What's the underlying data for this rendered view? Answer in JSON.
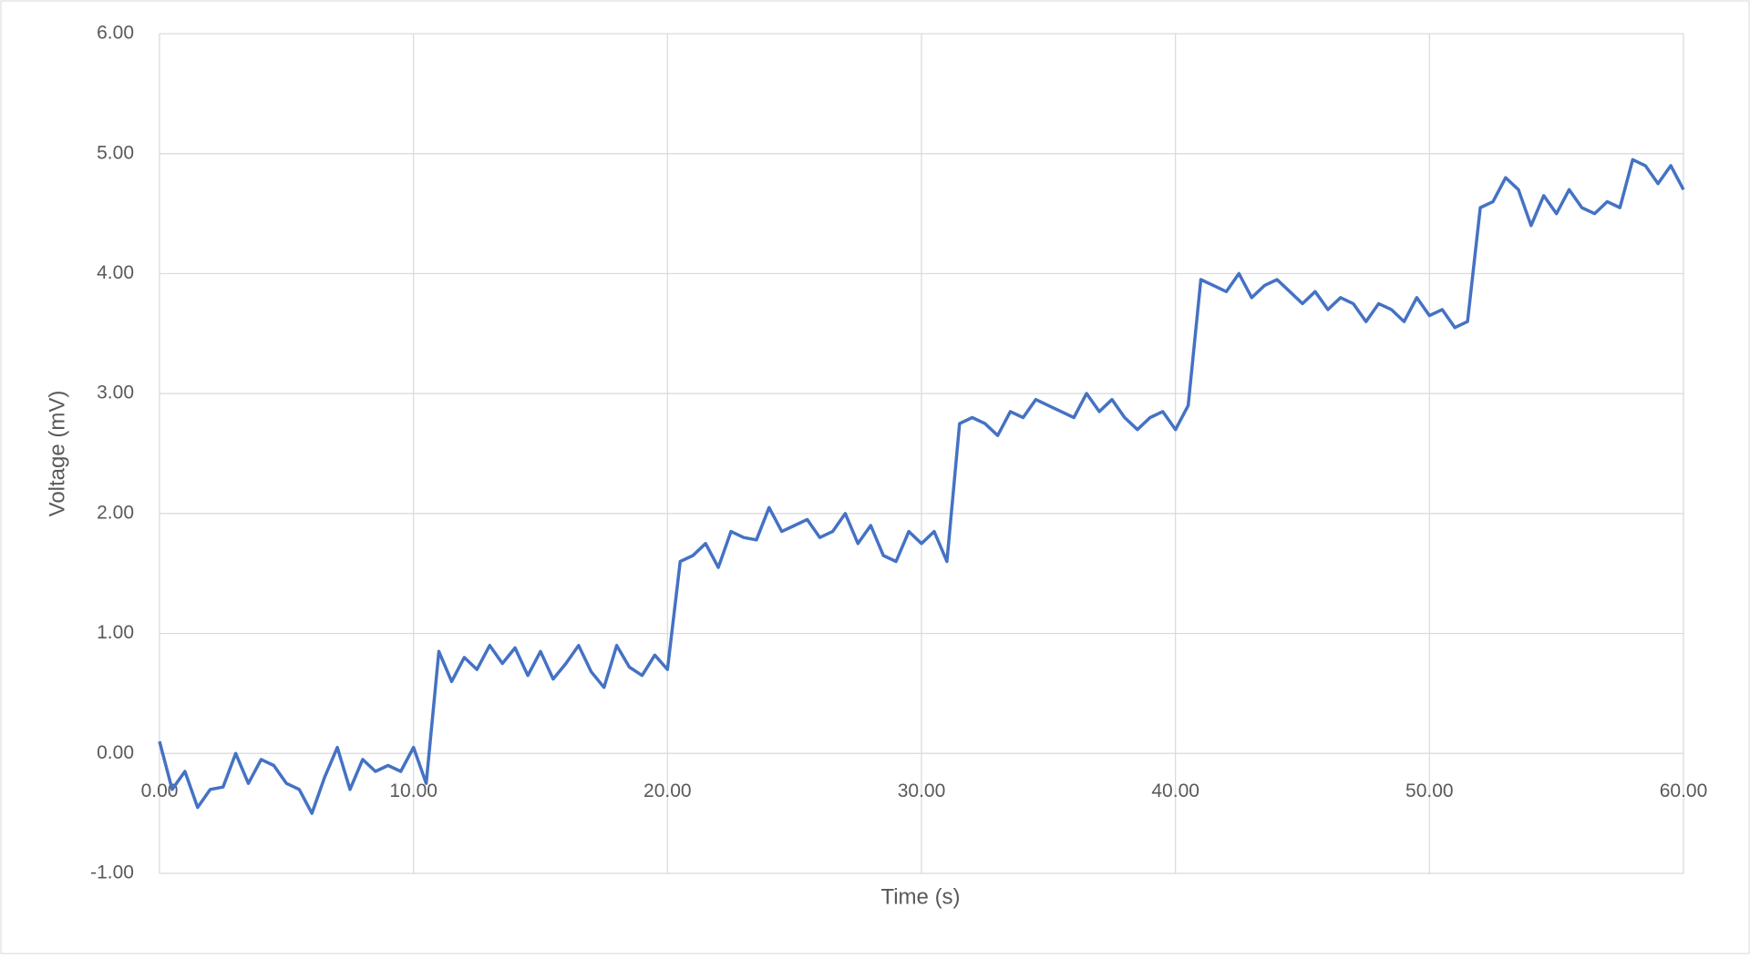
{
  "chart_data": {
    "type": "line",
    "xlabel": "Time (s)",
    "ylabel": "Voltage (mV)",
    "x": [
      0,
      0.5,
      1,
      1.5,
      2,
      2.5,
      3,
      3.5,
      4,
      4.5,
      5,
      5.5,
      6,
      6.5,
      7,
      7.5,
      8,
      8.5,
      9,
      9.5,
      10,
      10.5,
      11,
      11.5,
      12,
      12.5,
      13,
      13.5,
      14,
      14.5,
      15,
      15.5,
      16,
      16.5,
      17,
      17.5,
      18,
      18.5,
      19,
      19.5,
      20,
      20.5,
      21,
      21.5,
      22,
      22.5,
      23,
      23.5,
      24,
      24.5,
      25,
      25.5,
      26,
      26.5,
      27,
      27.5,
      28,
      28.5,
      29,
      29.5,
      30,
      30.5,
      31,
      31.5,
      32,
      32.5,
      33,
      33.5,
      34,
      34.5,
      35,
      35.5,
      36,
      36.5,
      37,
      37.5,
      38,
      38.5,
      39,
      39.5,
      40,
      40.5,
      41,
      41.5,
      42,
      42.5,
      43,
      43.5,
      44,
      44.5,
      45,
      45.5,
      46,
      46.5,
      47,
      47.5,
      48,
      48.5,
      49,
      49.5,
      50,
      50.5,
      51,
      51.5,
      52,
      52.5,
      53,
      53.5,
      54,
      54.5,
      55,
      55.5,
      56,
      56.5,
      57,
      57.5,
      58,
      58.5,
      59,
      59.5,
      60
    ],
    "series": [
      {
        "name": "Voltage",
        "color": "#4472c4",
        "values": [
          0.1,
          -0.3,
          -0.15,
          -0.45,
          -0.3,
          -0.28,
          0.0,
          -0.25,
          -0.05,
          -0.1,
          -0.25,
          -0.3,
          -0.5,
          -0.2,
          0.05,
          -0.3,
          -0.05,
          -0.15,
          -0.1,
          -0.15,
          0.05,
          -0.25,
          0.85,
          0.6,
          0.8,
          0.7,
          0.9,
          0.75,
          0.88,
          0.65,
          0.85,
          0.62,
          0.75,
          0.9,
          0.68,
          0.55,
          0.9,
          0.72,
          0.65,
          0.82,
          0.7,
          1.6,
          1.65,
          1.75,
          1.55,
          1.85,
          1.8,
          1.78,
          2.05,
          1.85,
          1.9,
          1.95,
          1.8,
          1.85,
          2.0,
          1.75,
          1.9,
          1.65,
          1.6,
          1.85,
          1.75,
          1.85,
          1.6,
          2.75,
          2.8,
          2.75,
          2.65,
          2.85,
          2.8,
          2.95,
          2.9,
          2.85,
          2.8,
          3.0,
          2.85,
          2.95,
          2.8,
          2.7,
          2.8,
          2.85,
          2.7,
          2.9,
          3.95,
          3.9,
          3.85,
          4.0,
          3.8,
          3.9,
          3.95,
          3.85,
          3.75,
          3.85,
          3.7,
          3.8,
          3.75,
          3.6,
          3.75,
          3.7,
          3.6,
          3.8,
          3.65,
          3.7,
          3.55,
          3.6,
          4.55,
          4.6,
          4.8,
          4.7,
          4.4,
          4.65,
          4.5,
          4.7,
          4.55,
          4.5,
          4.6,
          4.55,
          4.95,
          4.9,
          4.75,
          4.9,
          4.7
        ]
      }
    ],
    "xlim": [
      0,
      60
    ],
    "ylim": [
      -1,
      6
    ],
    "xticks": [
      {
        "value": 0,
        "label": "0.00"
      },
      {
        "value": 10,
        "label": "10.00"
      },
      {
        "value": 20,
        "label": "20.00"
      },
      {
        "value": 30,
        "label": "30.00"
      },
      {
        "value": 40,
        "label": "40.00"
      },
      {
        "value": 50,
        "label": "50.00"
      },
      {
        "value": 60,
        "label": "60.00"
      }
    ],
    "yticks": [
      {
        "value": -1,
        "label": "-1.00"
      },
      {
        "value": 0,
        "label": "0.00"
      },
      {
        "value": 1,
        "label": "1.00"
      },
      {
        "value": 2,
        "label": "2.00"
      },
      {
        "value": 3,
        "label": "3.00"
      },
      {
        "value": 4,
        "label": "4.00"
      },
      {
        "value": 5,
        "label": "5.00"
      },
      {
        "value": 6,
        "label": "6.00"
      }
    ],
    "grid": true
  }
}
